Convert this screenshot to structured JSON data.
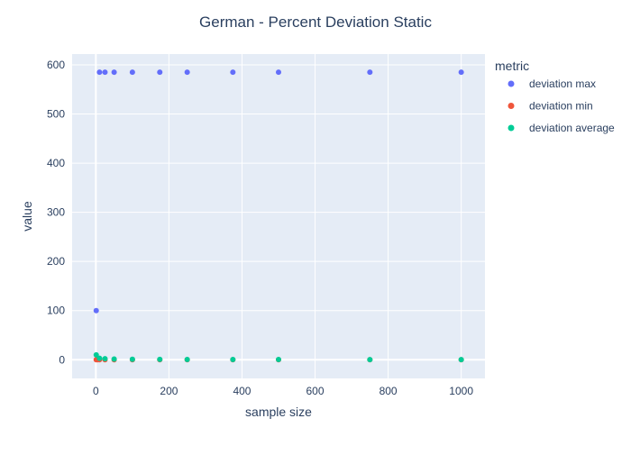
{
  "chart_data": {
    "type": "scatter",
    "title": "German - Percent Deviation Static",
    "xlabel": "sample size",
    "ylabel": "value",
    "xlim": [
      -65,
      1065
    ],
    "ylim": [
      -38,
      622
    ],
    "x_ticks": [
      0,
      200,
      400,
      600,
      800,
      1000
    ],
    "y_ticks": [
      0,
      100,
      200,
      300,
      400,
      500,
      600
    ],
    "grid": true,
    "legend": {
      "title": "metric",
      "placement": "top-right-outside"
    },
    "series": [
      {
        "name": "deviation max",
        "color": "#636efa",
        "points": [
          {
            "x": 1,
            "y": 100
          },
          {
            "x": 10,
            "y": 585
          },
          {
            "x": 25,
            "y": 585
          },
          {
            "x": 50,
            "y": 585
          },
          {
            "x": 100,
            "y": 585
          },
          {
            "x": 175,
            "y": 585
          },
          {
            "x": 250,
            "y": 585
          },
          {
            "x": 375,
            "y": 585
          },
          {
            "x": 500,
            "y": 585
          },
          {
            "x": 750,
            "y": 585
          },
          {
            "x": 1000,
            "y": 585
          }
        ]
      },
      {
        "name": "deviation min",
        "color": "#ef553b",
        "points": [
          {
            "x": 1,
            "y": 0
          },
          {
            "x": 5,
            "y": 0
          },
          {
            "x": 10,
            "y": 0
          },
          {
            "x": 25,
            "y": 0
          },
          {
            "x": 50,
            "y": 0
          },
          {
            "x": 100,
            "y": 0
          },
          {
            "x": 175,
            "y": 0
          },
          {
            "x": 250,
            "y": 0
          },
          {
            "x": 375,
            "y": 0
          },
          {
            "x": 500,
            "y": 0
          },
          {
            "x": 750,
            "y": 0
          },
          {
            "x": 1000,
            "y": 0
          }
        ]
      },
      {
        "name": "deviation average",
        "color": "#00cc96",
        "points": [
          {
            "x": 1,
            "y": 10
          },
          {
            "x": 10,
            "y": 3
          },
          {
            "x": 25,
            "y": 2
          },
          {
            "x": 50,
            "y": 1.5
          },
          {
            "x": 100,
            "y": 1
          },
          {
            "x": 175,
            "y": 0.8
          },
          {
            "x": 250,
            "y": 0.6
          },
          {
            "x": 375,
            "y": 0.5
          },
          {
            "x": 500,
            "y": 0.4
          },
          {
            "x": 750,
            "y": 0.3
          },
          {
            "x": 1000,
            "y": 0.2
          }
        ]
      }
    ]
  }
}
